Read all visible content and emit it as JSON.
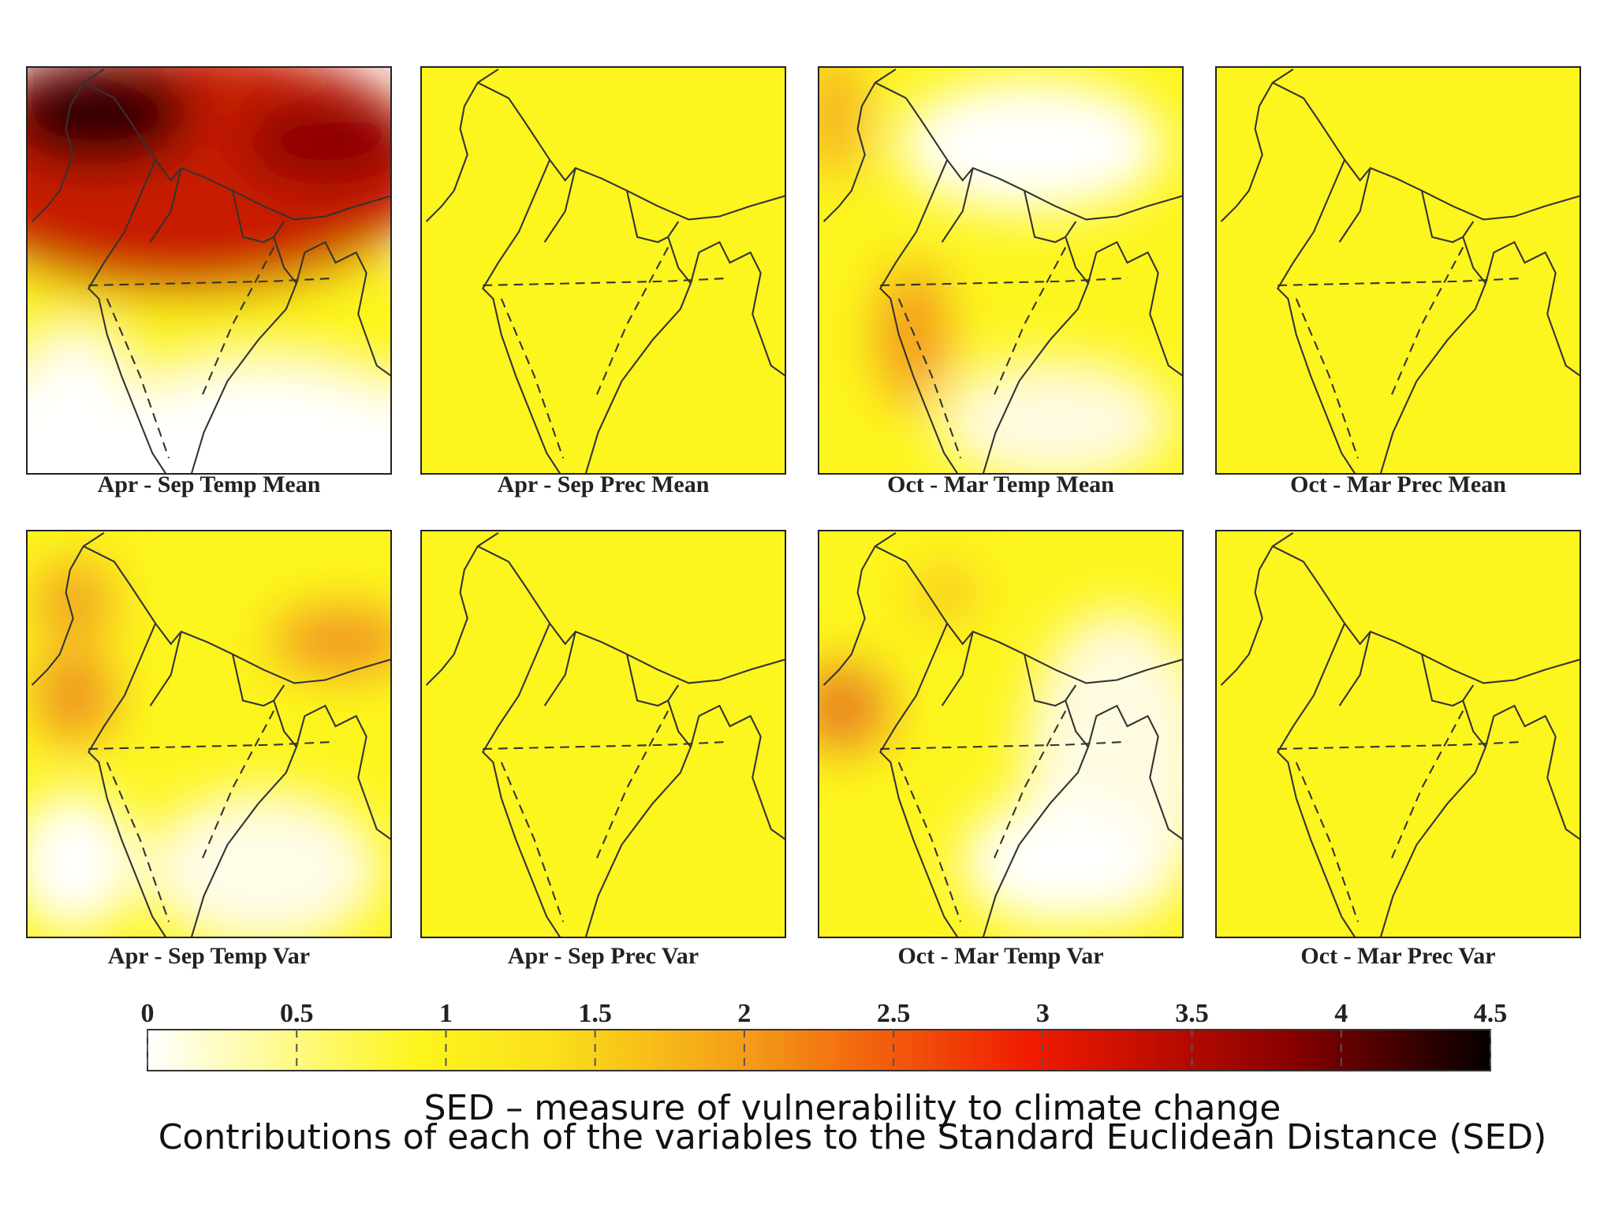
{
  "panels": [
    {
      "label": "Apr - Sep Temp Mean"
    },
    {
      "label": "Apr - Sep Prec Mean"
    },
    {
      "label": "Oct - Mar Temp Mean"
    },
    {
      "label": "Oct - Mar Prec Mean"
    },
    {
      "label": "Apr - Sep Temp Var"
    },
    {
      "label": "Apr - Sep Prec Var"
    },
    {
      "label": "Oct - Mar Temp Var"
    },
    {
      "label": "Oct - Mar Prec Var"
    }
  ],
  "colorbar": {
    "lim": [
      0,
      4.5
    ],
    "ticks": [
      0,
      0.5,
      1,
      1.5,
      2,
      2.5,
      3,
      3.5,
      4,
      4.5
    ]
  },
  "title": "SED – measure of vulnerability to climate change",
  "subtitle": "Contributions of each of the variables to the Standard Euclidean Distance (SED)"
}
